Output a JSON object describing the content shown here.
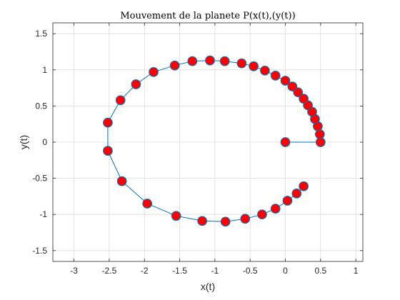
{
  "chart_data": {
    "type": "line",
    "title": "Mouvement de la planete P(x(t),(y(t))",
    "xlabel": "x(t)",
    "ylabel": "y(t)",
    "xlim": [
      -3.3,
      1.1
    ],
    "ylim": [
      -1.65,
      1.65
    ],
    "xticks": [
      -3,
      -2.5,
      -2,
      -1.5,
      -1,
      -0.5,
      0,
      0.5,
      1
    ],
    "xtick_labels": [
      "-3",
      "-2.5",
      "-2",
      "-1.5",
      "-1",
      "-0.5",
      "0",
      "0.5",
      "1"
    ],
    "yticks": [
      -1.5,
      -1,
      -0.5,
      0,
      0.5,
      1,
      1.5
    ],
    "ytick_labels": [
      "-1.5",
      "-1",
      "-0.5",
      "0",
      "0.5",
      "1",
      "1.5"
    ],
    "grid": true,
    "line_color": "#0072bd",
    "marker_fill": "#ff0000",
    "marker_edge": "#0072bd",
    "series": [
      {
        "x": [
          0,
          0.5,
          0.49,
          0.46,
          0.42,
          0.38,
          0.32,
          0.26,
          0.18,
          0.1,
          0,
          -0.14,
          -0.29,
          -0.45,
          -0.62,
          -0.86,
          -1.07,
          -1.32,
          -1.57,
          -1.87,
          -2.12,
          -2.34,
          -2.52,
          -2.52,
          -2.32,
          -1.96,
          -1.55,
          -1.18,
          -0.85,
          -0.57,
          -0.33,
          -0.14,
          0.03,
          0.16,
          0.26
        ],
        "y": [
          0,
          0,
          0.11,
          0.22,
          0.32,
          0.42,
          0.51,
          0.6,
          0.69,
          0.77,
          0.85,
          0.92,
          0.99,
          1.05,
          1.09,
          1.12,
          1.13,
          1.12,
          1.06,
          0.97,
          0.8,
          0.58,
          0.27,
          -0.12,
          -0.54,
          -0.85,
          -1.02,
          -1.09,
          -1.1,
          -1.06,
          -1.0,
          -0.92,
          -0.81,
          -0.71,
          -0.61
        ]
      }
    ]
  }
}
